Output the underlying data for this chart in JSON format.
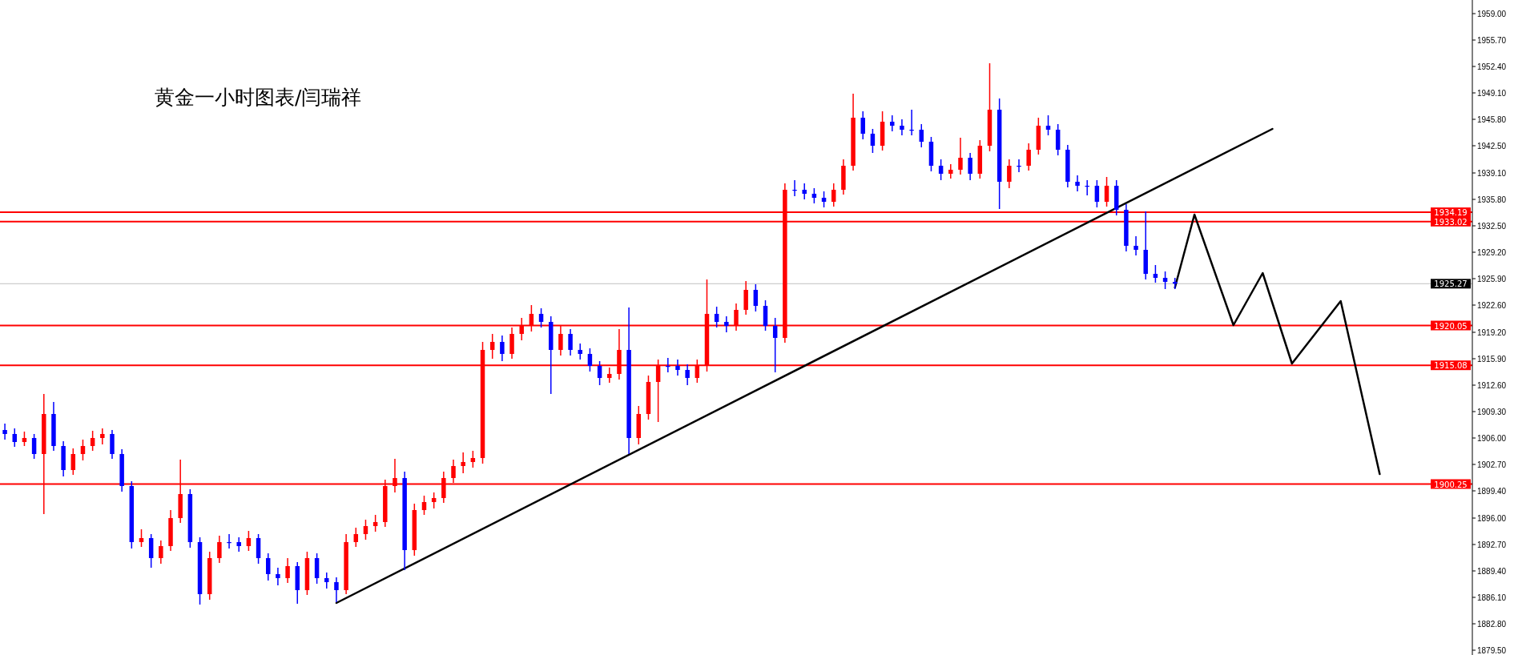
{
  "chart_data": {
    "type": "candlestick",
    "title": "黄金一小时图表/闫瑞祥",
    "categories": [
      null,
      null,
      null,
      null,
      null,
      null,
      null,
      null,
      null,
      null,
      null,
      null,
      null,
      null,
      null,
      null,
      null,
      null,
      null,
      null,
      null,
      null,
      null,
      null,
      null,
      null,
      null,
      null,
      null,
      null,
      null,
      null,
      null,
      null,
      null,
      null,
      null,
      null,
      null,
      null,
      null,
      null,
      null,
      null,
      null,
      null,
      null,
      null,
      null,
      null,
      null,
      null,
      null,
      null,
      null,
      null,
      null,
      null,
      null,
      null,
      null,
      null,
      null,
      null,
      null,
      null,
      null,
      null,
      null,
      null,
      null,
      null,
      null,
      null,
      null,
      null,
      null,
      null,
      null,
      null,
      null,
      null,
      null,
      null,
      null,
      null,
      null,
      null,
      null,
      null,
      null,
      null,
      null,
      null,
      null,
      null,
      null,
      null,
      null,
      null,
      null,
      null,
      null,
      null,
      null,
      null,
      null,
      null,
      null,
      null,
      null,
      null,
      null,
      null,
      null,
      null,
      null,
      null,
      null,
      null,
      null,
      null,
      null,
      null,
      null,
      null,
      null,
      null,
      null,
      null,
      null,
      null,
      null,
      null,
      null,
      null,
      null,
      null,
      null,
      null,
      null,
      null,
      null,
      null,
      null,
      null,
      null,
      null,
      null,
      null,
      null
    ],
    "ohlc": [
      [
        1907,
        1907.8,
        1905.8,
        1906.5
      ],
      [
        1906.5,
        1907.2,
        1904.9,
        1905.5
      ],
      [
        1905.5,
        1906.8,
        1905,
        1906
      ],
      [
        1906,
        1906.5,
        1903.4,
        1904
      ],
      [
        1904,
        1911.5,
        1896.5,
        1909
      ],
      [
        1909,
        1910.5,
        1904.4,
        1905
      ],
      [
        1905,
        1905.6,
        1901.2,
        1902
      ],
      [
        1902,
        1904.7,
        1901.4,
        1904
      ],
      [
        1904,
        1905.8,
        1903.2,
        1905
      ],
      [
        1905,
        1906.9,
        1904.4,
        1906
      ],
      [
        1906,
        1907.2,
        1905.2,
        1906.5
      ],
      [
        1906.5,
        1907,
        1903.4,
        1904
      ],
      [
        1904,
        1904.6,
        1899.3,
        1900
      ],
      [
        1900,
        1900.6,
        1892.2,
        1893
      ],
      [
        1893,
        1894.6,
        1892.4,
        1893.5
      ],
      [
        1893.5,
        1894,
        1889.8,
        1891
      ],
      [
        1891,
        1893.2,
        1890.3,
        1892.5
      ],
      [
        1892.5,
        1897,
        1891.9,
        1896
      ],
      [
        1896,
        1903.3,
        1895.4,
        1899
      ],
      [
        1899,
        1899.6,
        1892.3,
        1893
      ],
      [
        1893,
        1893.6,
        1885.2,
        1886.5
      ],
      [
        1886.5,
        1891.8,
        1885.8,
        1891
      ],
      [
        1891,
        1893.8,
        1890.4,
        1893
      ],
      [
        1893,
        1894,
        1892.2,
        1893
      ],
      [
        1893,
        1893.6,
        1891.8,
        1892.5
      ],
      [
        1892.5,
        1894.4,
        1891.9,
        1893.5
      ],
      [
        1893.5,
        1894,
        1890.3,
        1891
      ],
      [
        1891,
        1891.6,
        1888.2,
        1889
      ],
      [
        1889,
        1889.8,
        1887.6,
        1888.5
      ],
      [
        1888.5,
        1891,
        1887.9,
        1890
      ],
      [
        1890,
        1890.5,
        1885.3,
        1887
      ],
      [
        1887,
        1891.8,
        1886.4,
        1891
      ],
      [
        1891,
        1891.6,
        1887.8,
        1888.5
      ],
      [
        1888.5,
        1889.2,
        1887.2,
        1888
      ],
      [
        1888,
        1888.6,
        1885.5,
        1887
      ],
      [
        1887,
        1894,
        1886.5,
        1893
      ],
      [
        1893,
        1894.8,
        1892.4,
        1894
      ],
      [
        1894,
        1895.8,
        1893.3,
        1895
      ],
      [
        1895,
        1896.4,
        1894.3,
        1895.5
      ],
      [
        1895.5,
        1900.8,
        1894.9,
        1900
      ],
      [
        1900,
        1903.4,
        1899.2,
        1901
      ],
      [
        1901,
        1901.8,
        1889.5,
        1892
      ],
      [
        1892,
        1897.8,
        1891.3,
        1897
      ],
      [
        1897,
        1898.8,
        1896.4,
        1898
      ],
      [
        1898,
        1899.2,
        1897.2,
        1898.5
      ],
      [
        1898.5,
        1901.8,
        1897.9,
        1901
      ],
      [
        1901,
        1903.3,
        1900.4,
        1902.5
      ],
      [
        1902.5,
        1904.2,
        1901.6,
        1903
      ],
      [
        1903,
        1904.4,
        1902.3,
        1903.5
      ],
      [
        1903.5,
        1918,
        1902.8,
        1917
      ],
      [
        1917,
        1919,
        1915.9,
        1918
      ],
      [
        1918,
        1918.8,
        1915.6,
        1916.5
      ],
      [
        1916.5,
        1919.8,
        1915.9,
        1919
      ],
      [
        1919,
        1921,
        1918.2,
        1920
      ],
      [
        1920,
        1922.6,
        1919.3,
        1921.5
      ],
      [
        1921.5,
        1922.2,
        1919.8,
        1920.5
      ],
      [
        1920.5,
        1921.2,
        1911.5,
        1917
      ],
      [
        1917,
        1920,
        1916.3,
        1919
      ],
      [
        1919,
        1919.6,
        1916.3,
        1917
      ],
      [
        1917,
        1917.8,
        1915.8,
        1916.5
      ],
      [
        1916.5,
        1917.2,
        1914.3,
        1915
      ],
      [
        1915,
        1915.6,
        1912.6,
        1913.5
      ],
      [
        1913.5,
        1914.8,
        1912.9,
        1914
      ],
      [
        1914,
        1919.6,
        1913.3,
        1917
      ],
      [
        1917,
        1922.3,
        1904,
        1906
      ],
      [
        1906,
        1910,
        1905.2,
        1909
      ],
      [
        1909,
        1913.8,
        1908.3,
        1913
      ],
      [
        1913,
        1915.8,
        1908,
        1915
      ],
      [
        1915,
        1916,
        1914.2,
        1915
      ],
      [
        1915,
        1915.8,
        1913.8,
        1914.5
      ],
      [
        1914.5,
        1915.2,
        1912.6,
        1913.5
      ],
      [
        1913.5,
        1915.8,
        1912.9,
        1915
      ],
      [
        1915,
        1925.8,
        1914.3,
        1921.5
      ],
      [
        1921.5,
        1922.4,
        1919.8,
        1920.5
      ],
      [
        1920.5,
        1921.2,
        1919.2,
        1920
      ],
      [
        1920,
        1922.8,
        1919.4,
        1922
      ],
      [
        1922,
        1925.6,
        1921.4,
        1924.5
      ],
      [
        1924.5,
        1925.2,
        1921.8,
        1922.5
      ],
      [
        1922.5,
        1923.2,
        1919.4,
        1920
      ],
      [
        1920,
        1921,
        1914.2,
        1918.5
      ],
      [
        1918.5,
        1937.8,
        1917.9,
        1937
      ],
      [
        1937,
        1938.2,
        1936.2,
        1937
      ],
      [
        1937,
        1937.8,
        1935.8,
        1936.5
      ],
      [
        1936.5,
        1937.2,
        1935.3,
        1936
      ],
      [
        1936,
        1936.8,
        1934.8,
        1935.5
      ],
      [
        1935.5,
        1937.8,
        1934.9,
        1937
      ],
      [
        1937,
        1940.8,
        1936.4,
        1940
      ],
      [
        1940,
        1949,
        1939.4,
        1946
      ],
      [
        1946,
        1946.8,
        1943.3,
        1944
      ],
      [
        1944,
        1944.6,
        1941.6,
        1942.5
      ],
      [
        1942.5,
        1946.8,
        1941.9,
        1945.5
      ],
      [
        1945.5,
        1946.3,
        1944.3,
        1945
      ],
      [
        1945,
        1945.8,
        1943.8,
        1944.5
      ],
      [
        1944.5,
        1947,
        1943.8,
        1944.5
      ],
      [
        1944.5,
        1945.2,
        1942.3,
        1943
      ],
      [
        1943,
        1943.6,
        1939.3,
        1940
      ],
      [
        1940,
        1940.8,
        1938.2,
        1939
      ],
      [
        1939,
        1940.2,
        1938.4,
        1939.5
      ],
      [
        1939.5,
        1943.5,
        1938.9,
        1941
      ],
      [
        1941,
        1941.6,
        1938.2,
        1939
      ],
      [
        1939,
        1943.2,
        1938.4,
        1942.5
      ],
      [
        1942.5,
        1952.8,
        1941.8,
        1947
      ],
      [
        1947,
        1948.4,
        1934.6,
        1938
      ],
      [
        1938,
        1940.8,
        1937.2,
        1940
      ],
      [
        1940,
        1940.8,
        1939.2,
        1940
      ],
      [
        1940,
        1942.8,
        1939.4,
        1942
      ],
      [
        1942,
        1946,
        1941.4,
        1945
      ],
      [
        1945,
        1946.3,
        1943.8,
        1944.5
      ],
      [
        1944.5,
        1945.2,
        1941.3,
        1942
      ],
      [
        1942,
        1942.6,
        1937.3,
        1938
      ],
      [
        1938,
        1938.8,
        1936.8,
        1937.5
      ],
      [
        1937.5,
        1938.2,
        1936.3,
        1937.5
      ],
      [
        1937.5,
        1938.2,
        1934.8,
        1935.5
      ],
      [
        1935.5,
        1938.6,
        1934.9,
        1937.5
      ],
      [
        1937.5,
        1938.2,
        1933.8,
        1934.5
      ],
      [
        1934.5,
        1935.2,
        1929.3,
        1930
      ],
      [
        1930,
        1931.2,
        1928.8,
        1929.5
      ],
      [
        1929.5,
        1934.3,
        1925.8,
        1926.5
      ],
      [
        1926.5,
        1927.6,
        1925.4,
        1926
      ],
      [
        1926,
        1926.8,
        1924.6,
        1925.5
      ],
      [
        1925.5,
        1926,
        1924.6,
        1925.27
      ],
      null,
      null,
      null,
      null,
      null,
      null,
      null,
      null,
      null,
      null,
      null,
      null,
      null,
      null,
      null,
      null,
      null,
      null,
      null,
      null,
      null,
      null,
      null,
      null,
      null,
      null,
      null,
      null,
      null,
      null
    ],
    "colors": [
      "#0000ff",
      "#0000ff",
      "#ff0000",
      "#0000ff",
      "#ff0000",
      "#0000ff",
      "#0000ff",
      "#ff0000",
      "#ff0000",
      "#ff0000",
      "#ff0000",
      "#0000ff",
      "#0000ff",
      "#0000ff",
      "#ff0000",
      "#0000ff",
      "#ff0000",
      "#ff0000",
      "#ff0000",
      "#0000ff",
      "#0000ff",
      "#ff0000",
      "#ff0000",
      "#0000ff",
      "#0000ff",
      "#ff0000",
      "#0000ff",
      "#0000ff",
      "#0000ff",
      "#ff0000",
      "#0000ff",
      "#ff0000",
      "#0000ff",
      "#0000ff",
      "#0000ff",
      "#ff0000",
      "#ff0000",
      "#ff0000",
      "#ff0000",
      "#ff0000",
      "#ff0000",
      "#0000ff",
      "#ff0000",
      "#ff0000",
      "#ff0000",
      "#ff0000",
      "#ff0000",
      "#ff0000",
      "#ff0000",
      "#ff0000",
      "#ff0000",
      "#0000ff",
      "#ff0000",
      "#ff0000",
      "#ff0000",
      "#0000ff",
      "#0000ff",
      "#ff0000",
      "#0000ff",
      "#0000ff",
      "#0000ff",
      "#0000ff",
      "#ff0000",
      "#ff0000",
      "#0000ff",
      "#ff0000",
      "#ff0000",
      "#ff0000",
      "#0000ff",
      "#0000ff",
      "#0000ff",
      "#ff0000",
      "#ff0000",
      "#0000ff",
      "#0000ff",
      "#ff0000",
      "#ff0000",
      "#0000ff",
      "#0000ff",
      "#0000ff",
      "#ff0000",
      "#0000ff",
      "#0000ff",
      "#0000ff",
      "#0000ff",
      "#ff0000",
      "#ff0000",
      "#ff0000",
      "#0000ff",
      "#0000ff",
      "#ff0000",
      "#0000ff",
      "#0000ff",
      "#0000ff",
      "#0000ff",
      "#0000ff",
      "#0000ff",
      "#ff0000",
      "#ff0000",
      "#0000ff",
      "#ff0000",
      "#ff0000",
      "#0000ff",
      "#ff0000",
      "#0000ff",
      "#ff0000",
      "#ff0000",
      "#0000ff",
      "#0000ff",
      "#0000ff",
      "#0000ff",
      "#0000ff",
      "#0000ff",
      "#ff0000",
      "#0000ff",
      "#0000ff",
      "#0000ff",
      "#0000ff",
      "#0000ff",
      "#0000ff",
      "#0000ff",
      null,
      null,
      null,
      null,
      null,
      null,
      null,
      null,
      null,
      null,
      null,
      null,
      null,
      null,
      null,
      null,
      null,
      null,
      null,
      null,
      null,
      null,
      null,
      null,
      null,
      null,
      null,
      null,
      null,
      null
    ],
    "series": [
      {
        "type": "line",
        "color": "#000000",
        "values": [
          null,
          null,
          null,
          null,
          null,
          null,
          null,
          null,
          null,
          null,
          null,
          null,
          null,
          null,
          null,
          null,
          null,
          null,
          null,
          null,
          null,
          null,
          null,
          null,
          null,
          null,
          null,
          null,
          null,
          null,
          null,
          null,
          null,
          null,
          1885.4,
          null,
          null,
          null,
          null,
          null,
          null,
          null,
          null,
          null,
          null,
          null,
          null,
          null,
          null,
          null,
          null,
          null,
          null,
          null,
          null,
          null,
          null,
          null,
          null,
          null,
          null,
          null,
          null,
          null,
          null,
          null,
          null,
          null,
          null,
          null,
          null,
          null,
          null,
          null,
          null,
          null,
          null,
          null,
          null,
          null,
          null,
          null,
          null,
          null,
          null,
          null,
          null,
          null,
          null,
          null,
          null,
          null,
          null,
          null,
          null,
          null,
          null,
          null,
          null,
          null,
          null,
          null,
          null,
          null,
          null,
          null,
          null,
          null,
          null,
          null,
          null,
          null,
          null,
          null,
          null,
          null,
          null,
          null,
          null,
          null,
          null,
          null,
          null,
          null,
          null,
          null,
          null,
          null,
          null,
          null,
          1944.6,
          null,
          null,
          null,
          null,
          null,
          null,
          null,
          null,
          null,
          null,
          null,
          null,
          null,
          null,
          null,
          null,
          null,
          null,
          null,
          null
        ]
      },
      {
        "type": "line",
        "color": "#000000",
        "values": [
          null,
          null,
          null,
          null,
          null,
          null,
          null,
          null,
          null,
          null,
          null,
          null,
          null,
          null,
          null,
          null,
          null,
          null,
          null,
          null,
          null,
          null,
          null,
          null,
          null,
          null,
          null,
          null,
          null,
          null,
          null,
          null,
          null,
          null,
          null,
          null,
          null,
          null,
          null,
          null,
          null,
          null,
          null,
          null,
          null,
          null,
          null,
          null,
          null,
          null,
          null,
          null,
          null,
          null,
          null,
          null,
          null,
          null,
          null,
          null,
          null,
          null,
          null,
          null,
          null,
          null,
          null,
          null,
          null,
          null,
          null,
          null,
          null,
          null,
          null,
          null,
          null,
          null,
          null,
          null,
          null,
          null,
          null,
          null,
          null,
          null,
          null,
          null,
          null,
          null,
          null,
          null,
          null,
          null,
          null,
          null,
          null,
          null,
          null,
          null,
          null,
          null,
          null,
          null,
          null,
          null,
          null,
          null,
          null,
          null,
          null,
          null,
          null,
          null,
          null,
          null,
          null,
          null,
          null,
          null,
          1924.8,
          null,
          1933.9,
          null,
          null,
          null,
          1920.1,
          null,
          null,
          1926.6,
          null,
          null,
          1915.3,
          null,
          null,
          null,
          null,
          1923.1,
          null,
          null,
          null,
          1901.5,
          null,
          null,
          null,
          null,
          null,
          null,
          null,
          null,
          null
        ]
      }
    ],
    "ylim": [
      1878.9,
      1960.7
    ],
    "yticks": [
      {
        "value": 1959,
        "label": "1959.00"
      },
      {
        "value": 1955.7,
        "label": "1955.70"
      },
      {
        "value": 1952.4,
        "label": "1952.40"
      },
      {
        "value": 1949.1,
        "label": "1949.10"
      },
      {
        "value": 1945.8,
        "label": "1945.80"
      },
      {
        "value": 1942.5,
        "label": "1942.50"
      },
      {
        "value": 1939.1,
        "label": "1939.10"
      },
      {
        "value": 1935.8,
        "label": "1935.80"
      },
      {
        "value": 1932.5,
        "label": "1932.50"
      },
      {
        "value": 1929.2,
        "label": "1929.20"
      },
      {
        "value": 1925.9,
        "label": "1925.90"
      },
      {
        "value": 1922.6,
        "label": "1922.60"
      },
      {
        "value": 1919.2,
        "label": "1919.20"
      },
      {
        "value": 1915.9,
        "label": "1915.90"
      },
      {
        "value": 1912.6,
        "label": "1912.60"
      },
      {
        "value": 1909.3,
        "label": "1909.30"
      },
      {
        "value": 1906,
        "label": "1906.00"
      },
      {
        "value": 1902.7,
        "label": "1902.70"
      },
      {
        "value": 1899.4,
        "label": "1899.40"
      },
      {
        "value": 1896,
        "label": "1896.00"
      },
      {
        "value": 1892.7,
        "label": "1892.70"
      },
      {
        "value": 1889.4,
        "label": "1889.40"
      },
      {
        "value": 1886.1,
        "label": "1886.10"
      },
      {
        "value": 1882.8,
        "label": "1882.80"
      },
      {
        "value": 1879.5,
        "label": "1879.50"
      }
    ],
    "tick_labels": "y",
    "ref_lines": [
      {
        "axis": "y",
        "value": 1934.19,
        "label": "1934.19",
        "color": "#ff0000"
      },
      {
        "axis": "y",
        "value": 1933.02,
        "label": "1933.02",
        "color": "#ff0000"
      },
      {
        "axis": "y",
        "value": 1925.27,
        "label": "1925.27",
        "color": "#c0c0c0"
      },
      {
        "axis": "y",
        "value": 1920.05,
        "label": "1920.05",
        "color": "#ff0000"
      },
      {
        "axis": "y",
        "value": 1915.08,
        "label": "1915.08",
        "color": "#ff0000"
      },
      {
        "axis": "y",
        "value": 1900.25,
        "label": "1900.25",
        "color": "#ff0000"
      }
    ]
  }
}
